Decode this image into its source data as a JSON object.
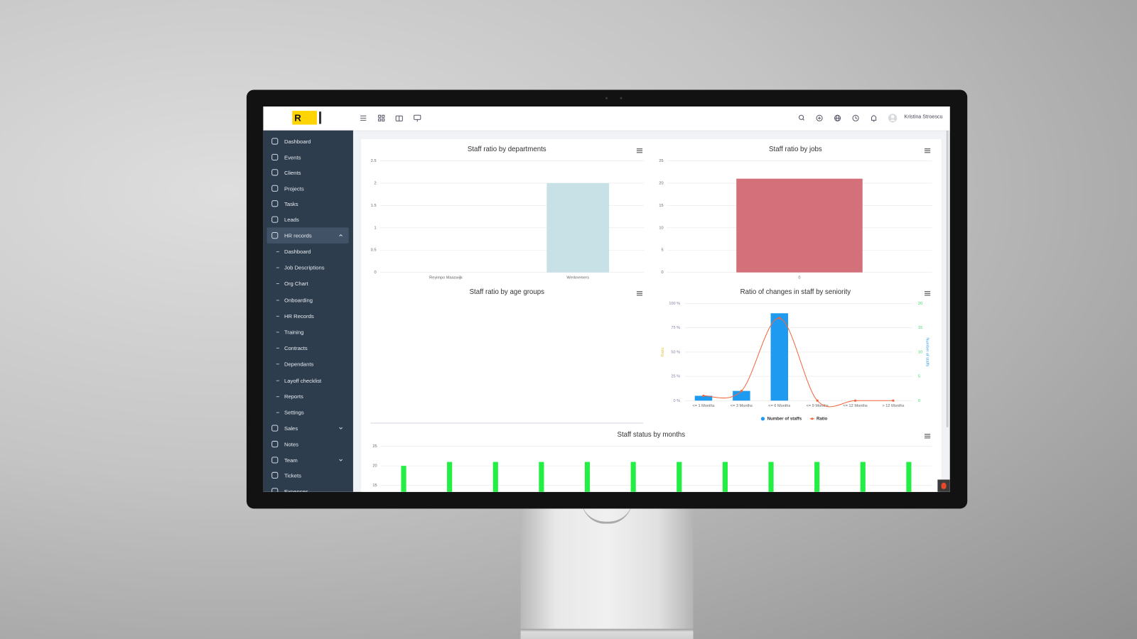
{
  "header": {
    "logo": "R",
    "user_name": "Kristina Stroescu"
  },
  "sidebar": {
    "menu": [
      "Dashboard",
      "Events",
      "Clients",
      "Projects",
      "Tasks",
      "Leads",
      "HR records"
    ],
    "hr_records_menu": [
      "Dashboard",
      "Job Descriptions",
      "Org Chart",
      "Onboarding",
      "HR Records",
      "Training",
      "Contracts",
      "Dependants",
      "Layoff checklist",
      "Reports",
      "Settings"
    ],
    "menu_after": [
      "Sales",
      "Notes",
      "Team",
      "Tickets",
      "Expenses"
    ]
  },
  "charts": [
    {
      "type": "bar",
      "title": "Staff ratio by departments",
      "categories": [
        "Reyimpo Maaswijk",
        "Werknemers"
      ],
      "values": [
        0,
        2
      ],
      "color": "#c8e1e7",
      "ylim": [
        0,
        2.5
      ],
      "yticks": [
        0,
        0.5,
        1,
        1.5,
        2,
        2.5
      ],
      "grid": true
    },
    {
      "type": "bar",
      "title": "Staff ratio by jobs",
      "categories": [
        "0"
      ],
      "values": [
        21
      ],
      "color": "#d4707a",
      "ylim": [
        0,
        25
      ],
      "yticks": [
        0,
        5,
        10,
        15,
        20,
        25
      ],
      "grid": true
    },
    {
      "type": "bar",
      "title": "Staff ratio by age groups"
    },
    {
      "type": "combo",
      "title": "Ratio of changes in staff by seniority",
      "categories": [
        "<= 1 Months",
        "<= 3 Months",
        "<= 6 Months",
        "<= 9 Months",
        "<= 12 Months",
        "> 12 Months"
      ],
      "series": [
        {
          "name": "Number of staffs",
          "type": "bar",
          "color": "#1e9bf0",
          "axis": "y2",
          "values": [
            1,
            2,
            18,
            0,
            0,
            0
          ]
        },
        {
          "name": "Ratio",
          "type": "line",
          "color": "#f2663f",
          "values": [
            5,
            10,
            85,
            0,
            0,
            0
          ]
        }
      ],
      "ylabel": "Ratio",
      "y2label": "Number of staffs",
      "ylim": [
        0,
        100
      ],
      "yticks": [
        {
          "value": 0,
          "label": "0 %"
        },
        {
          "value": 25,
          "label": "25 %"
        },
        {
          "value": 50,
          "label": "50 %"
        },
        {
          "value": 75,
          "label": "75 %"
        },
        {
          "value": 100,
          "label": "100 %"
        }
      ],
      "y2lim": [
        0,
        20
      ],
      "y2ticks": [
        0,
        5,
        10,
        15,
        20
      ],
      "grid": true
    },
    {
      "type": "bar",
      "title": "Staff status by months",
      "values": [
        20,
        21,
        21,
        21,
        21,
        21,
        21,
        21,
        21,
        21,
        21,
        21
      ],
      "color": "#22ee44",
      "ylim": [
        0,
        25
      ],
      "yticks": [
        15,
        20,
        25
      ],
      "grid": true
    }
  ]
}
